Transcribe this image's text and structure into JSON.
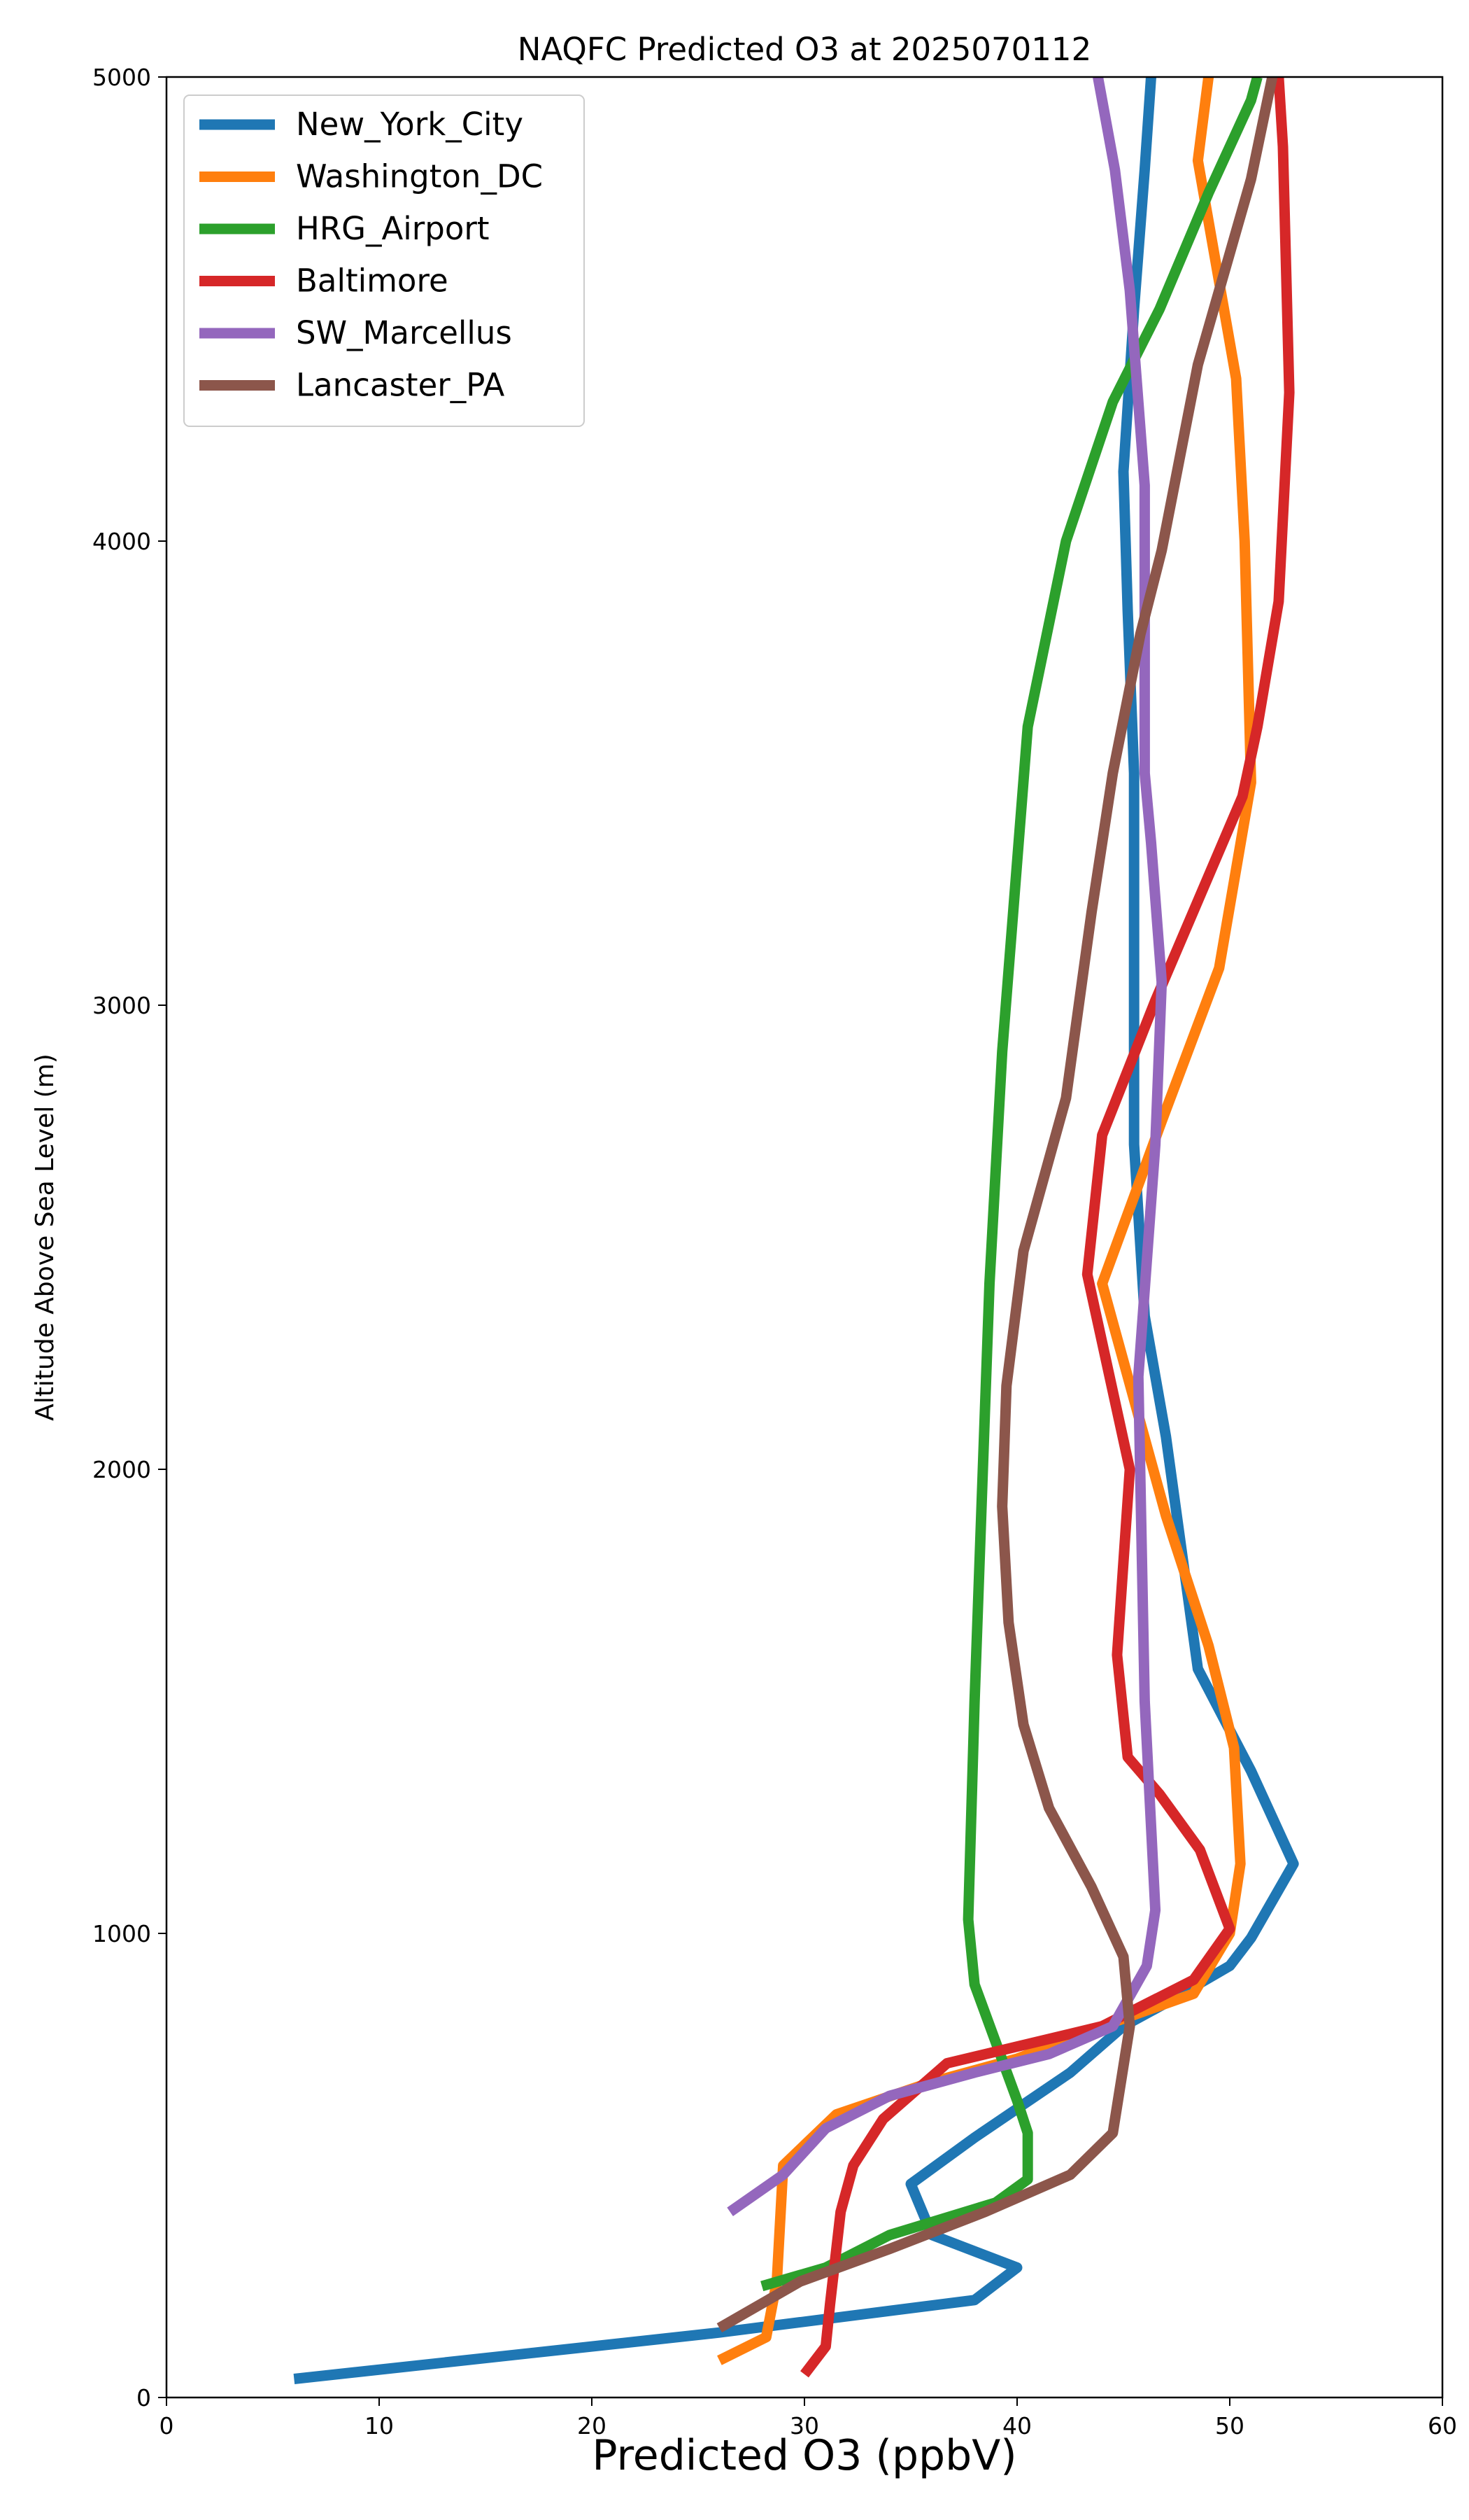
{
  "chart_data": {
    "type": "line",
    "title": "NAQFC Predicted O3 at 2025070112",
    "xlabel": "Predicted O3 (ppbV)",
    "ylabel": "Altitude Above Sea Level (m)",
    "xlim": [
      0,
      60
    ],
    "ylim": [
      0,
      5000
    ],
    "xticks": [
      0,
      10,
      20,
      30,
      40,
      50,
      60
    ],
    "yticks": [
      0,
      1000,
      2000,
      3000,
      4000,
      5000
    ],
    "grid": false,
    "legend_position": "upper-left",
    "series": [
      {
        "name": "New_York_City",
        "color": "#1f77b4",
        "points": [
          [
            6,
            40
          ],
          [
            26,
            140
          ],
          [
            38,
            210
          ],
          [
            40,
            280
          ],
          [
            36,
            350
          ],
          [
            35,
            460
          ],
          [
            38,
            560
          ],
          [
            42.5,
            700
          ],
          [
            45,
            800
          ],
          [
            47,
            850
          ],
          [
            50,
            930
          ],
          [
            51,
            990
          ],
          [
            53,
            1150
          ],
          [
            51,
            1350
          ],
          [
            48.5,
            1570
          ],
          [
            47,
            2070
          ],
          [
            46,
            2330
          ],
          [
            45.5,
            2700
          ],
          [
            45.5,
            3500
          ],
          [
            45.2,
            3850
          ],
          [
            45,
            4150
          ],
          [
            45.5,
            4500
          ],
          [
            46,
            4800
          ],
          [
            46.3,
            5000
          ]
        ]
      },
      {
        "name": "Washington_DC",
        "color": "#ff7f0e",
        "points": [
          [
            26,
            80
          ],
          [
            28.2,
            130
          ],
          [
            28.7,
            250
          ],
          [
            29,
            500
          ],
          [
            31.5,
            610
          ],
          [
            36,
            680
          ],
          [
            40,
            730
          ],
          [
            44,
            800
          ],
          [
            48.3,
            870
          ],
          [
            50,
            1000
          ],
          [
            50.5,
            1150
          ],
          [
            50.2,
            1400
          ],
          [
            49,
            1620
          ],
          [
            47,
            1900
          ],
          [
            44,
            2400
          ],
          [
            46.8,
            2750
          ],
          [
            49.5,
            3080
          ],
          [
            51,
            3480
          ],
          [
            50.7,
            4000
          ],
          [
            50.3,
            4350
          ],
          [
            48.5,
            4820
          ],
          [
            49,
            5000
          ]
        ]
      },
      {
        "name": "HRG_Airport",
        "color": "#2ca02c",
        "points": [
          [
            28,
            240
          ],
          [
            31,
            280
          ],
          [
            34,
            350
          ],
          [
            39,
            420
          ],
          [
            40.5,
            470
          ],
          [
            40.5,
            570
          ],
          [
            40,
            640
          ],
          [
            38,
            890
          ],
          [
            37.7,
            1030
          ],
          [
            38,
            1500
          ],
          [
            38.7,
            2400
          ],
          [
            39.3,
            2900
          ],
          [
            40.5,
            3600
          ],
          [
            42.3,
            4000
          ],
          [
            44.5,
            4300
          ],
          [
            46.7,
            4500
          ],
          [
            49,
            4750
          ],
          [
            51,
            4950
          ],
          [
            51.3,
            5000
          ]
        ]
      },
      {
        "name": "Baltimore",
        "color": "#d62728",
        "points": [
          [
            30,
            50
          ],
          [
            31,
            110
          ],
          [
            31.2,
            200
          ],
          [
            31.7,
            400
          ],
          [
            32.3,
            500
          ],
          [
            33.7,
            600
          ],
          [
            36.7,
            720
          ],
          [
            44,
            800
          ],
          [
            48.3,
            900
          ],
          [
            50,
            1010
          ],
          [
            48.6,
            1180
          ],
          [
            46.7,
            1300
          ],
          [
            45.2,
            1380
          ],
          [
            44.7,
            1600
          ],
          [
            45.3,
            2000
          ],
          [
            43.3,
            2420
          ],
          [
            44,
            2720
          ],
          [
            46.5,
            3010
          ],
          [
            50.6,
            3450
          ],
          [
            51.3,
            3600
          ],
          [
            52.3,
            3870
          ],
          [
            52.8,
            4320
          ],
          [
            52.5,
            4850
          ],
          [
            52.3,
            5000
          ]
        ]
      },
      {
        "name": "SW_Marcellus",
        "color": "#9467bd",
        "points": [
          [
            26.5,
            400
          ],
          [
            29,
            480
          ],
          [
            31,
            580
          ],
          [
            34,
            650
          ],
          [
            38,
            700
          ],
          [
            41.5,
            740
          ],
          [
            44.5,
            800
          ],
          [
            46.1,
            930
          ],
          [
            46.5,
            1050
          ],
          [
            46,
            1500
          ],
          [
            45.7,
            2200
          ],
          [
            46.5,
            2700
          ],
          [
            46.8,
            3050
          ],
          [
            46.3,
            3350
          ],
          [
            46,
            3500
          ],
          [
            46,
            4120
          ],
          [
            45.3,
            4540
          ],
          [
            44.6,
            4800
          ],
          [
            43.8,
            5000
          ]
        ]
      },
      {
        "name": "Lancaster_PA",
        "color": "#8c564b",
        "points": [
          [
            26,
            150
          ],
          [
            29.8,
            250
          ],
          [
            34,
            320
          ],
          [
            38.5,
            400
          ],
          [
            42.5,
            480
          ],
          [
            44.5,
            570
          ],
          [
            45.3,
            800
          ],
          [
            45,
            950
          ],
          [
            43.5,
            1100
          ],
          [
            41.5,
            1270
          ],
          [
            40.3,
            1450
          ],
          [
            39.6,
            1670
          ],
          [
            39.3,
            1920
          ],
          [
            39.5,
            2180
          ],
          [
            40.3,
            2470
          ],
          [
            42.3,
            2800
          ],
          [
            43.5,
            3200
          ],
          [
            44.5,
            3500
          ],
          [
            45.8,
            3800
          ],
          [
            46.8,
            3980
          ],
          [
            48.5,
            4380
          ],
          [
            51,
            4780
          ],
          [
            52,
            5000
          ]
        ]
      }
    ]
  }
}
